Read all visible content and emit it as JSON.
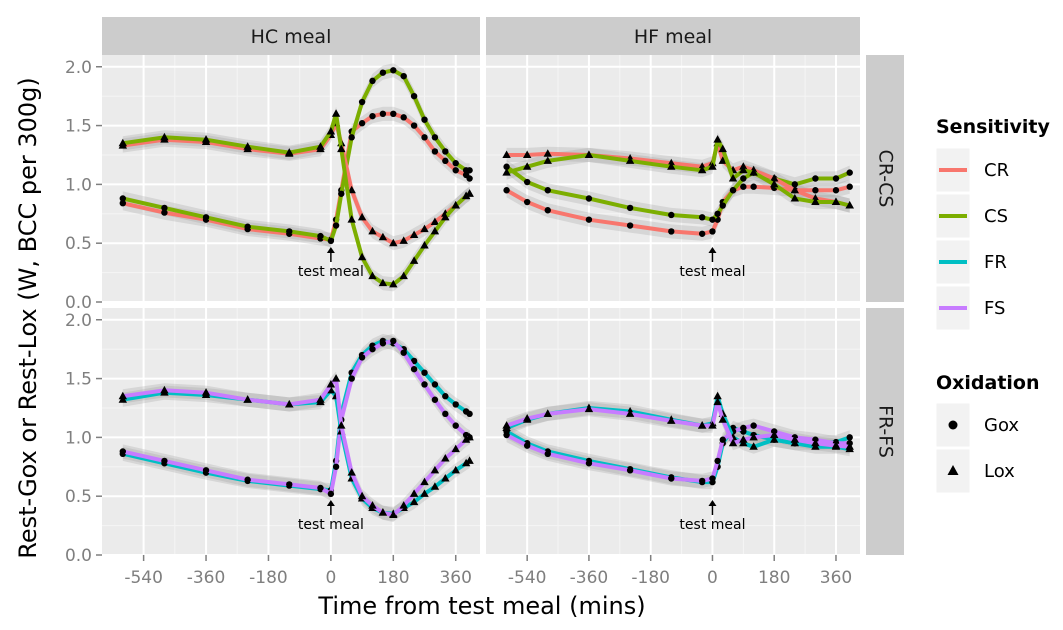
{
  "chart_data": {
    "type": "line",
    "xlabel": "Time from test meal (mins)",
    "ylabel": "Rest-Gox or Rest-Lox (W, BCC per 300g)",
    "xlim": [
      -660,
      430
    ],
    "ylim": [
      0,
      2.1
    ],
    "x_ticks": [
      -540,
      -360,
      -180,
      0,
      180,
      360
    ],
    "y_ticks": [
      0.0,
      0.5,
      1.0,
      1.5,
      2.0
    ],
    "y_tick_labels": [
      "0.0",
      "0.5",
      "1.0",
      "1.5",
      "2.0"
    ],
    "columns": [
      "HC meal",
      "HF meal"
    ],
    "rows": [
      "CR-CS",
      "FR-FS"
    ],
    "annotation": {
      "text": "test meal",
      "x": 0
    },
    "grid": true,
    "legend_position": "right",
    "legends": {
      "sensitivity": {
        "title": "Sensitivity",
        "items": [
          {
            "label": "CR",
            "color": "#F8766D"
          },
          {
            "label": "CS",
            "color": "#7CAE00"
          },
          {
            "label": "FR",
            "color": "#00BFC4"
          },
          {
            "label": "FS",
            "color": "#C77CFF"
          }
        ]
      },
      "oxidation": {
        "title": "Oxidation",
        "items": [
          {
            "label": "Gox",
            "shape": "circle"
          },
          {
            "label": "Lox",
            "shape": "triangle"
          }
        ]
      }
    },
    "panels": [
      {
        "column": "HC meal",
        "row": "CR-CS",
        "series": [
          {
            "group": "CR",
            "oxidation": "Gox",
            "color": "#F8766D",
            "x": [
              -600,
              -480,
              -360,
              -240,
              -120,
              -30,
              0,
              15,
              30,
              60,
              90,
              120,
              150,
              180,
              210,
              240,
              270,
              300,
              330,
              360,
              390,
              400
            ],
            "y": [
              0.84,
              0.76,
              0.7,
              0.62,
              0.58,
              0.54,
              0.53,
              0.7,
              0.95,
              1.45,
              1.52,
              1.58,
              1.6,
              1.6,
              1.57,
              1.5,
              1.4,
              1.28,
              1.2,
              1.12,
              1.08,
              1.05
            ]
          },
          {
            "group": "CS",
            "oxidation": "Gox",
            "color": "#7CAE00",
            "x": [
              -600,
              -480,
              -360,
              -240,
              -120,
              -30,
              0,
              15,
              30,
              60,
              90,
              120,
              150,
              180,
              210,
              240,
              270,
              300,
              330,
              360,
              390,
              400
            ],
            "y": [
              0.88,
              0.8,
              0.72,
              0.64,
              0.6,
              0.56,
              0.52,
              0.65,
              0.92,
              1.4,
              1.7,
              1.88,
              1.95,
              1.97,
              1.92,
              1.75,
              1.55,
              1.4,
              1.28,
              1.18,
              1.12,
              1.12
            ]
          },
          {
            "group": "CR",
            "oxidation": "Lox",
            "color": "#F8766D",
            "x": [
              -600,
              -480,
              -360,
              -240,
              -120,
              -30,
              0,
              15,
              30,
              60,
              90,
              120,
              150,
              180,
              210,
              240,
              270,
              300,
              330,
              360,
              390,
              400
            ],
            "y": [
              1.33,
              1.38,
              1.36,
              1.3,
              1.26,
              1.3,
              1.42,
              1.52,
              1.35,
              0.95,
              0.72,
              0.6,
              0.55,
              0.5,
              0.52,
              0.57,
              0.62,
              0.68,
              0.75,
              0.82,
              0.9,
              0.92
            ]
          },
          {
            "group": "CS",
            "oxidation": "Lox",
            "color": "#7CAE00",
            "x": [
              -600,
              -480,
              -360,
              -240,
              -120,
              -30,
              0,
              15,
              30,
              60,
              90,
              120,
              150,
              180,
              210,
              240,
              270,
              300,
              330,
              360,
              390,
              400
            ],
            "y": [
              1.35,
              1.4,
              1.38,
              1.32,
              1.27,
              1.32,
              1.45,
              1.6,
              1.3,
              0.7,
              0.38,
              0.22,
              0.16,
              0.15,
              0.22,
              0.35,
              0.48,
              0.6,
              0.72,
              0.82,
              0.9,
              0.92
            ]
          }
        ]
      },
      {
        "column": "HF meal",
        "row": "CR-CS",
        "series": [
          {
            "group": "CR",
            "oxidation": "Gox",
            "color": "#F8766D",
            "x": [
              -600,
              -540,
              -480,
              -360,
              -240,
              -120,
              -30,
              0,
              15,
              30,
              60,
              90,
              120,
              180,
              240,
              300,
              360,
              400
            ],
            "y": [
              0.95,
              0.85,
              0.78,
              0.7,
              0.65,
              0.6,
              0.58,
              0.6,
              0.7,
              0.85,
              0.95,
              0.98,
              0.98,
              0.97,
              0.95,
              0.95,
              0.95,
              0.98
            ]
          },
          {
            "group": "CS",
            "oxidation": "Gox",
            "color": "#7CAE00",
            "x": [
              -600,
              -540,
              -480,
              -360,
              -240,
              -120,
              -30,
              0,
              15,
              30,
              60,
              90,
              120,
              180,
              240,
              300,
              360,
              400
            ],
            "y": [
              1.15,
              1.02,
              0.95,
              0.88,
              0.8,
              0.74,
              0.72,
              0.7,
              0.75,
              0.82,
              0.95,
              1.05,
              1.1,
              1.05,
              1.0,
              1.05,
              1.05,
              1.1
            ]
          },
          {
            "group": "CR",
            "oxidation": "Lox",
            "color": "#F8766D",
            "x": [
              -600,
              -540,
              -480,
              -360,
              -240,
              -120,
              -30,
              0,
              15,
              30,
              60,
              90,
              120,
              180,
              240,
              300,
              360,
              400
            ],
            "y": [
              1.25,
              1.25,
              1.26,
              1.25,
              1.22,
              1.18,
              1.15,
              1.18,
              1.35,
              1.2,
              1.12,
              1.15,
              1.12,
              1.05,
              0.95,
              0.88,
              0.85,
              0.82
            ]
          },
          {
            "group": "CS",
            "oxidation": "Lox",
            "color": "#7CAE00",
            "x": [
              -600,
              -540,
              -480,
              -360,
              -240,
              -120,
              -30,
              0,
              15,
              30,
              60,
              90,
              120,
              180,
              240,
              300,
              360,
              400
            ],
            "y": [
              1.1,
              1.15,
              1.2,
              1.25,
              1.2,
              1.15,
              1.12,
              1.15,
              1.38,
              1.3,
              1.05,
              1.12,
              1.1,
              1.0,
              0.88,
              0.85,
              0.85,
              0.82
            ]
          }
        ]
      },
      {
        "column": "HC meal",
        "row": "FR-FS",
        "series": [
          {
            "group": "FR",
            "oxidation": "Gox",
            "color": "#00BFC4",
            "x": [
              -600,
              -480,
              -360,
              -240,
              -120,
              -30,
              0,
              15,
              30,
              60,
              90,
              120,
              150,
              180,
              210,
              240,
              270,
              300,
              330,
              360,
              390,
              400
            ],
            "y": [
              0.86,
              0.78,
              0.7,
              0.63,
              0.59,
              0.56,
              0.55,
              0.8,
              1.2,
              1.55,
              1.7,
              1.78,
              1.82,
              1.8,
              1.75,
              1.65,
              1.55,
              1.45,
              1.35,
              1.28,
              1.22,
              1.2
            ]
          },
          {
            "group": "FS",
            "oxidation": "Gox",
            "color": "#C77CFF",
            "x": [
              -600,
              -480,
              -360,
              -240,
              -120,
              -30,
              0,
              15,
              30,
              60,
              90,
              120,
              150,
              180,
              210,
              240,
              270,
              300,
              330,
              360,
              390,
              400
            ],
            "y": [
              0.88,
              0.8,
              0.72,
              0.64,
              0.6,
              0.57,
              0.52,
              0.75,
              1.15,
              1.5,
              1.68,
              1.75,
              1.8,
              1.82,
              1.72,
              1.58,
              1.45,
              1.32,
              1.2,
              1.1,
              1.02,
              1.0
            ]
          },
          {
            "group": "FR",
            "oxidation": "Lox",
            "color": "#00BFC4",
            "x": [
              -600,
              -480,
              -360,
              -240,
              -120,
              -30,
              0,
              15,
              30,
              60,
              90,
              120,
              150,
              180,
              210,
              240,
              270,
              300,
              330,
              360,
              390,
              400
            ],
            "y": [
              1.32,
              1.38,
              1.36,
              1.32,
              1.28,
              1.3,
              1.4,
              1.35,
              1.05,
              0.65,
              0.48,
              0.4,
              0.36,
              0.35,
              0.4,
              0.45,
              0.52,
              0.58,
              0.65,
              0.72,
              0.78,
              0.8
            ]
          },
          {
            "group": "FS",
            "oxidation": "Lox",
            "color": "#C77CFF",
            "x": [
              -600,
              -480,
              -360,
              -240,
              -120,
              -30,
              0,
              15,
              30,
              60,
              90,
              120,
              150,
              180,
              210,
              240,
              270,
              300,
              330,
              360,
              390,
              400
            ],
            "y": [
              1.35,
              1.4,
              1.38,
              1.32,
              1.28,
              1.32,
              1.45,
              1.5,
              1.1,
              0.7,
              0.5,
              0.42,
              0.36,
              0.34,
              0.42,
              0.52,
              0.62,
              0.72,
              0.82,
              0.9,
              0.98,
              1.0
            ]
          }
        ]
      },
      {
        "column": "HF meal",
        "row": "FR-FS",
        "series": [
          {
            "group": "FR",
            "oxidation": "Gox",
            "color": "#00BFC4",
            "x": [
              -600,
              -540,
              -480,
              -360,
              -240,
              -120,
              -30,
              0,
              15,
              30,
              60,
              90,
              120,
              180,
              240,
              300,
              360,
              400
            ],
            "y": [
              1.05,
              0.95,
              0.88,
              0.8,
              0.73,
              0.66,
              0.62,
              0.62,
              0.75,
              0.95,
              1.08,
              1.05,
              1.02,
              0.98,
              0.95,
              0.95,
              0.96,
              1.0
            ]
          },
          {
            "group": "FS",
            "oxidation": "Gox",
            "color": "#C77CFF",
            "x": [
              -600,
              -540,
              -480,
              -360,
              -240,
              -120,
              -30,
              0,
              15,
              30,
              60,
              90,
              120,
              180,
              240,
              300,
              360,
              400
            ],
            "y": [
              1.02,
              0.93,
              0.86,
              0.78,
              0.72,
              0.65,
              0.63,
              0.65,
              0.8,
              0.98,
              1.05,
              1.08,
              1.1,
              1.05,
              1.0,
              0.98,
              0.95,
              0.95
            ]
          },
          {
            "group": "FR",
            "oxidation": "Lox",
            "color": "#00BFC4",
            "x": [
              -600,
              -540,
              -480,
              -360,
              -240,
              -120,
              -30,
              0,
              15,
              30,
              60,
              90,
              120,
              180,
              240,
              300,
              360,
              400
            ],
            "y": [
              1.08,
              1.15,
              1.2,
              1.25,
              1.22,
              1.15,
              1.1,
              1.12,
              1.35,
              1.2,
              1.0,
              0.95,
              0.92,
              0.98,
              0.95,
              0.92,
              0.92,
              0.9
            ]
          },
          {
            "group": "FS",
            "oxidation": "Lox",
            "color": "#C77CFF",
            "x": [
              -600,
              -540,
              -480,
              -360,
              -240,
              -120,
              -30,
              0,
              15,
              30,
              60,
              90,
              120,
              180,
              240,
              300,
              360,
              400
            ],
            "y": [
              1.1,
              1.16,
              1.2,
              1.24,
              1.2,
              1.14,
              1.1,
              1.1,
              1.3,
              1.15,
              0.95,
              0.98,
              1.0,
              1.02,
              0.98,
              0.95,
              0.93,
              0.92
            ]
          }
        ]
      }
    ]
  }
}
